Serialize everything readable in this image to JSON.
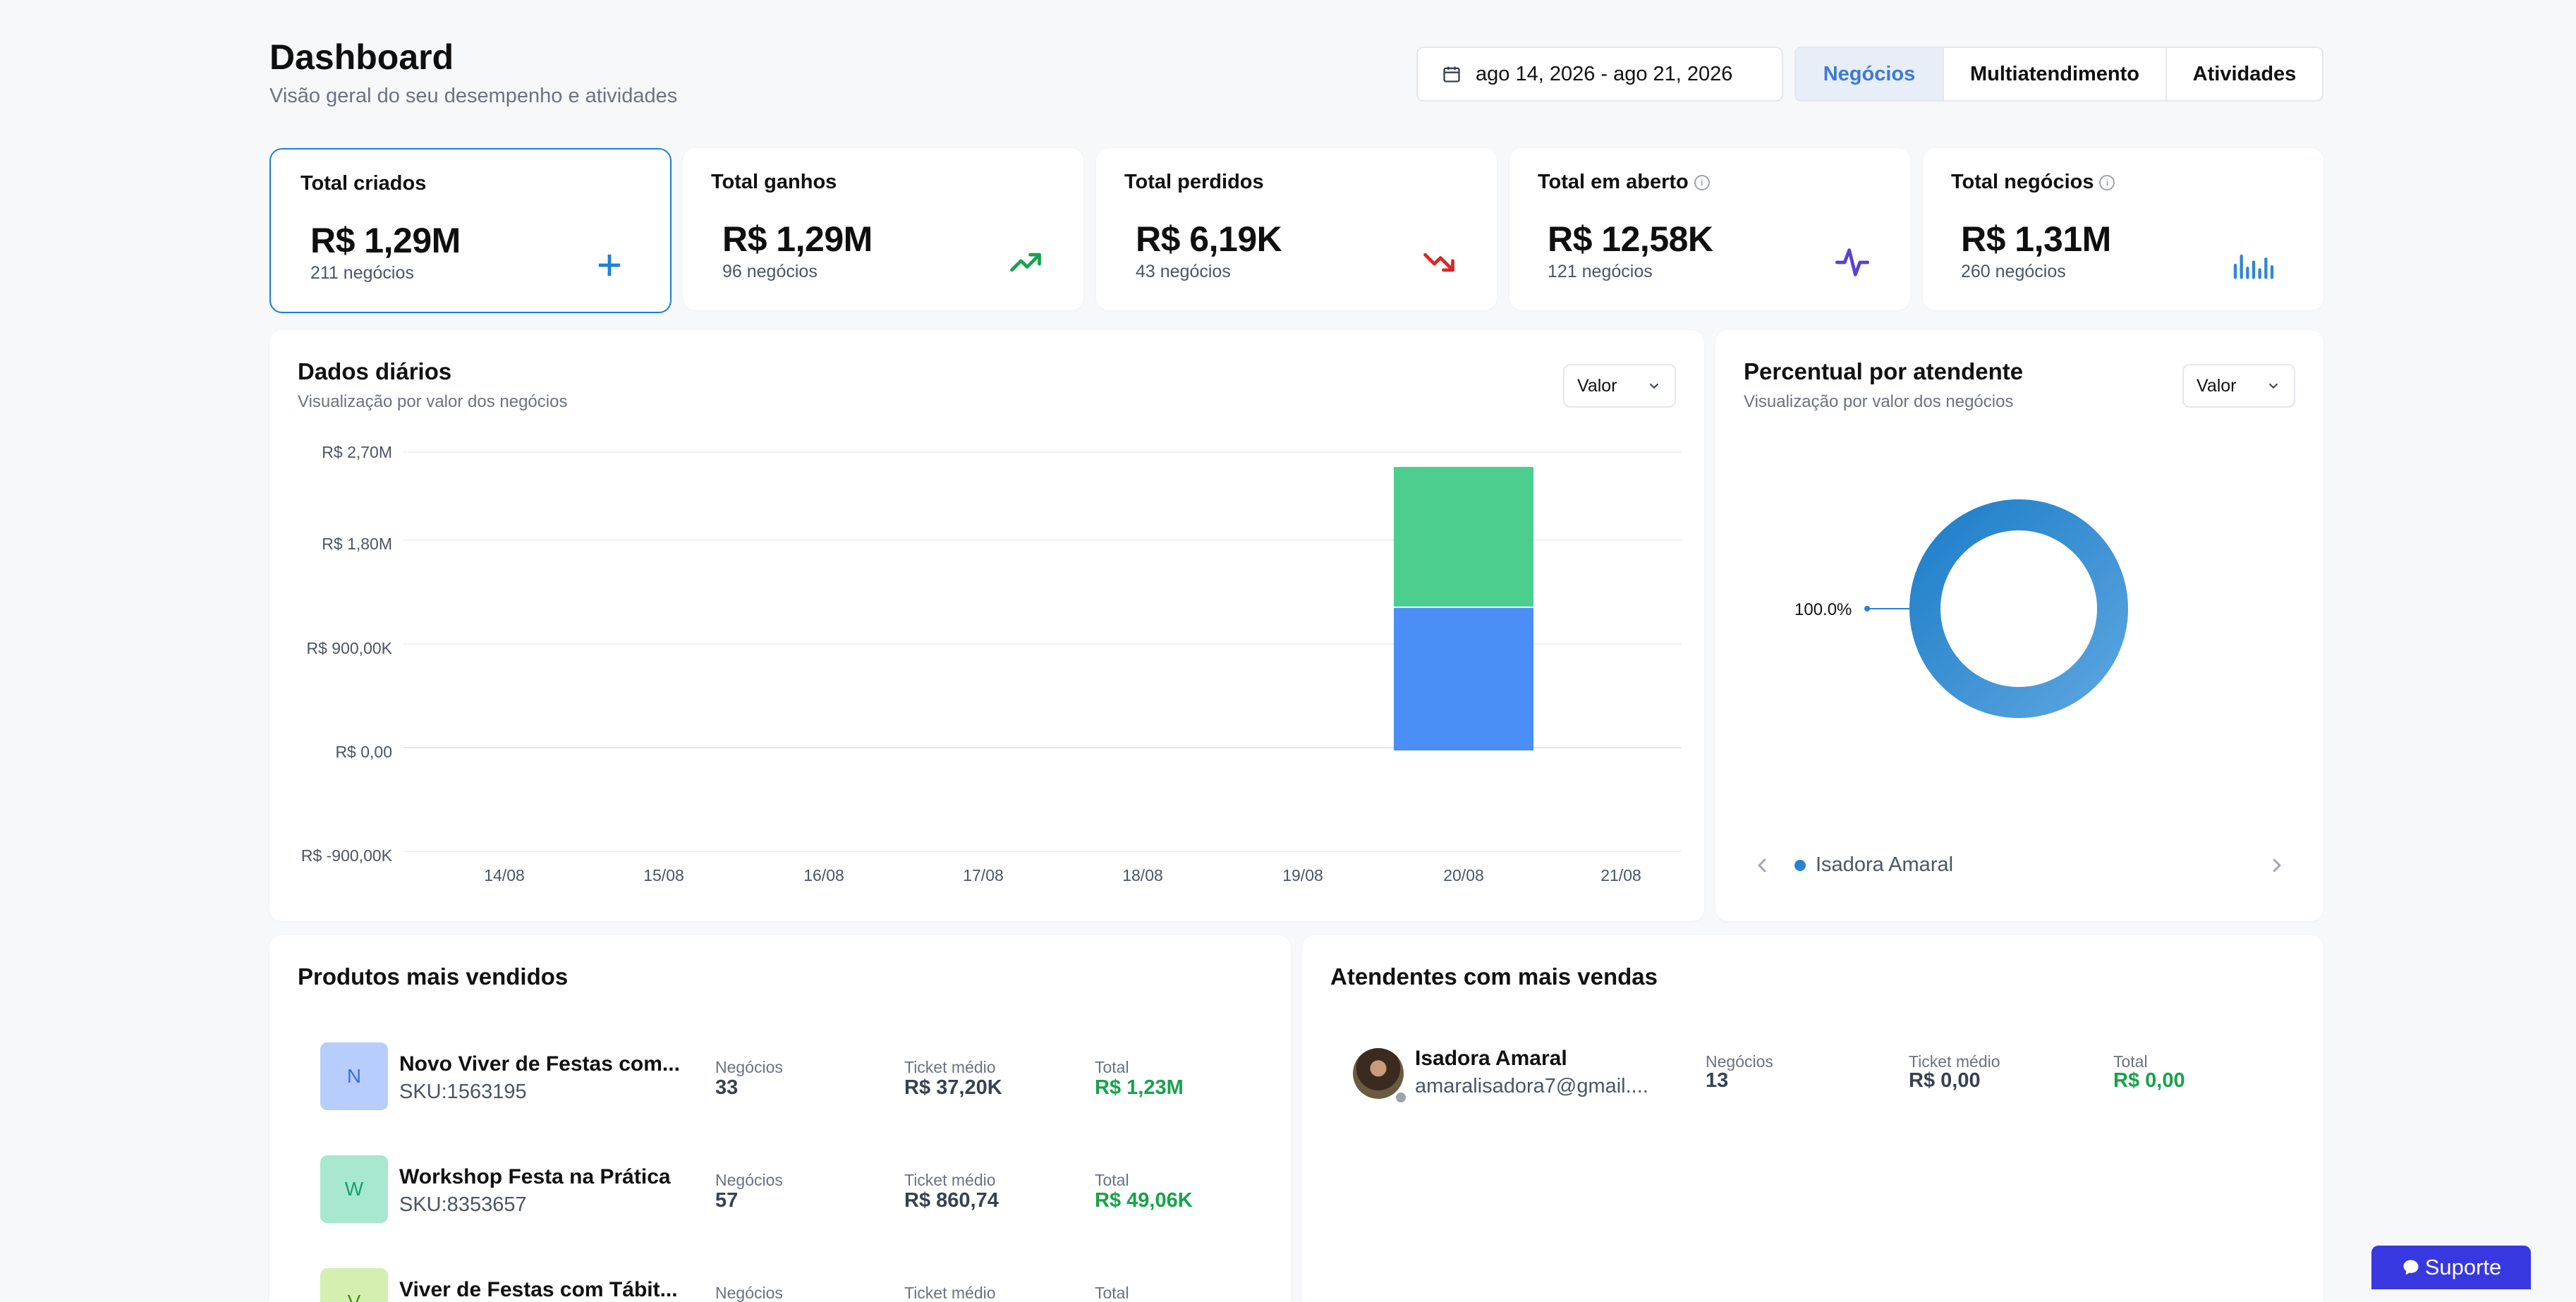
{
  "header": {
    "title": "Dashboard",
    "subtitle": "Visão geral do seu desempenho e atividades",
    "date_range": "ago 14, 2026 - ago 21, 2026",
    "tabs": [
      {
        "label": "Negócios",
        "active": true
      },
      {
        "label": "Multiatendimento",
        "active": false
      },
      {
        "label": "Atividades",
        "active": false
      }
    ]
  },
  "kpis": [
    {
      "title": "Total criados",
      "value": "R$ 1,29M",
      "sub": "211 negócios",
      "icon": "plus-icon",
      "color": "#1d7fd6"
    },
    {
      "title": "Total ganhos",
      "value": "R$ 1,29M",
      "sub": "96 negócios",
      "icon": "trending-up-icon",
      "color": "#16a34a"
    },
    {
      "title": "Total perdidos",
      "value": "R$ 6,19K",
      "sub": "43 negócios",
      "icon": "trending-down-icon",
      "color": "#dc2626"
    },
    {
      "title": "Total em aberto",
      "value": "R$ 12,58K",
      "sub": "121 negócios",
      "icon": "activity-icon",
      "color": "#5b3fd6"
    },
    {
      "title": "Total negócios",
      "value": "R$ 1,31M",
      "sub": "260 negócios",
      "icon": "bar-chart-icon",
      "color": "#2f86d6"
    }
  ],
  "daily": {
    "title": "Dados diários",
    "subtitle": "Visualização por valor dos negócios",
    "select": "Valor"
  },
  "chart_data": {
    "type": "bar",
    "stacked": true,
    "categories": [
      "14/08",
      "15/08",
      "16/08",
      "17/08",
      "18/08",
      "19/08",
      "20/08",
      "21/08"
    ],
    "series": [
      {
        "values": [
          0,
          0,
          0,
          0,
          0,
          0,
          1290000,
          0
        ],
        "color": "#4b8ef5"
      },
      {
        "values": [
          0,
          0,
          0,
          0,
          0,
          0,
          1270000,
          0
        ],
        "color": "#4ccf8e"
      }
    ],
    "yticks": [
      "R$ 2,70M",
      "R$ 1,80M",
      "R$ 900,00K",
      "R$ 0,00",
      "R$ -900,00K"
    ],
    "ylim": [
      -900000,
      2700000
    ],
    "grid": true
  },
  "percent": {
    "title": "Percentual por atendente",
    "subtitle": "Visualização por valor dos negócios",
    "select": "Valor",
    "label": "100.0%",
    "legend": "Isadora Amaral",
    "legend_color": "#2783cf",
    "value": 100
  },
  "products": {
    "title": "Produtos mais vendidos",
    "labels": {
      "deals": "Negócios",
      "ticket": "Ticket médio",
      "total": "Total"
    },
    "items": [
      {
        "initial": "N",
        "name": "Novo Viver de Festas com...",
        "sku": "SKU:1563195",
        "deals": "33",
        "ticket": "R$ 37,20K",
        "total": "R$ 1,23M",
        "bg": "#b7cdfb",
        "fg": "#3b6fd8"
      },
      {
        "initial": "W",
        "name": "Workshop Festa na Prática",
        "sku": "SKU:8353657",
        "deals": "57",
        "ticket": "R$ 860,74",
        "total": "R$ 49,06K",
        "bg": "#a7e8cf",
        "fg": "#16a36a"
      },
      {
        "initial": "V",
        "name": "Viver de Festas com Tábit...",
        "sku": "",
        "deals": "",
        "ticket": "",
        "total": "",
        "bg": "#d4f0b0",
        "fg": "#4d8a1a"
      }
    ]
  },
  "agents": {
    "title": "Atendentes com mais vendas",
    "labels": {
      "deals": "Negócios",
      "ticket": "Ticket médio",
      "total": "Total"
    },
    "items": [
      {
        "name": "Isadora Amaral",
        "email": "amaralisadora7@gmail....",
        "deals": "13",
        "ticket": "R$ 0,00",
        "total": "R$ 0,00"
      }
    ]
  },
  "support": {
    "label": "Suporte",
    "icon": "chat-icon"
  }
}
